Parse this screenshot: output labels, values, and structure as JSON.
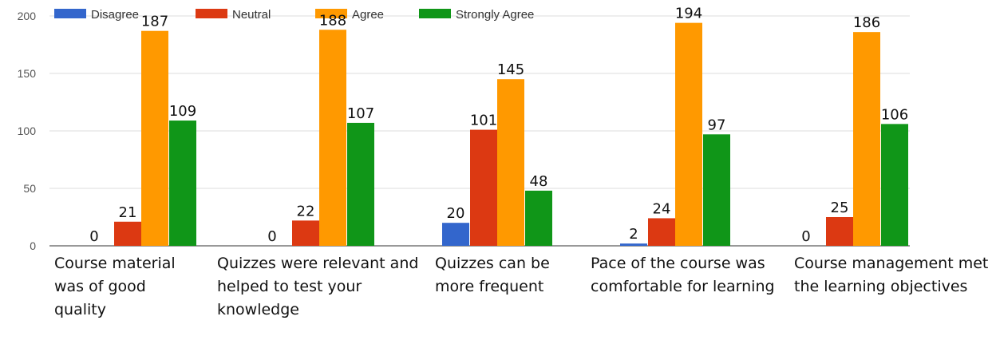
{
  "chart_data": {
    "type": "bar",
    "categories": [
      "Course material was of good quality",
      "Quizzes were relevant and helped to test your knowledge",
      "Quizzes can be more frequent",
      "Pace of the course was comfortable for learning",
      "Course management met the learning objectives"
    ],
    "series": [
      {
        "name": "Disagree",
        "color": "#3366cc",
        "values": [
          0,
          0,
          20,
          2,
          0
        ]
      },
      {
        "name": "Neutral",
        "color": "#dc3912",
        "values": [
          21,
          22,
          101,
          24,
          25
        ]
      },
      {
        "name": "Agree",
        "color": "#ff9900",
        "values": [
          187,
          188,
          145,
          194,
          186
        ]
      },
      {
        "name": "Strongly Agree",
        "color": "#109618",
        "values": [
          109,
          107,
          48,
          97,
          106
        ]
      }
    ],
    "ylim": [
      0,
      200
    ],
    "yticks": [
      0,
      50,
      100,
      150,
      200
    ],
    "grid": true,
    "legend": "top"
  }
}
